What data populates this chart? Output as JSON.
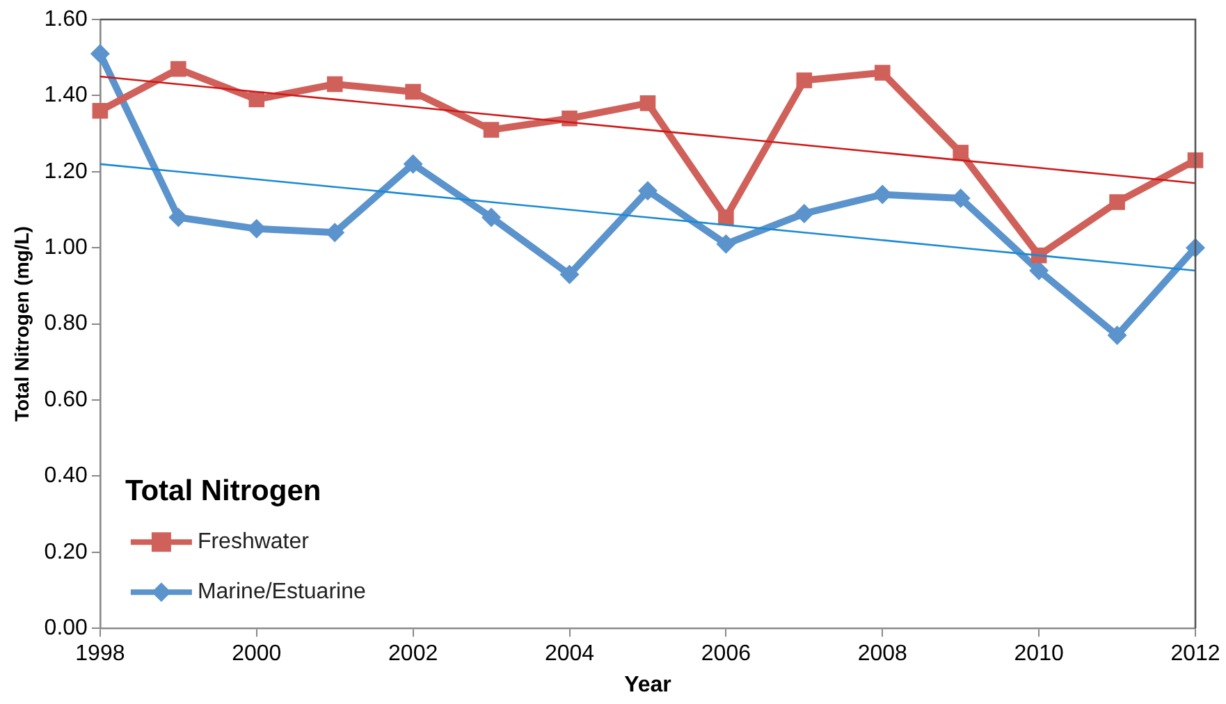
{
  "chart_data": {
    "type": "line",
    "xlabel": "Year",
    "ylabel": "Total Nitrogen (mg/L)",
    "legend_title": "Total Nitrogen",
    "legend": "bottom left",
    "grid": false,
    "x": [
      1998,
      1999,
      2000,
      2001,
      2002,
      2003,
      2004,
      2005,
      2006,
      2007,
      2008,
      2009,
      2010,
      2011,
      2012
    ],
    "xlim": [
      1998,
      2012
    ],
    "xticks": [
      1998,
      2000,
      2002,
      2004,
      2006,
      2008,
      2010,
      2012
    ],
    "ylim": [
      0,
      1.6
    ],
    "yticks": [
      {
        "value": 0,
        "label": "0.00"
      },
      {
        "value": 0.2,
        "label": "0.20"
      },
      {
        "value": 0.4,
        "label": "0.40"
      },
      {
        "value": 0.6,
        "label": "0.60"
      },
      {
        "value": 0.8,
        "label": "0.80"
      },
      {
        "value": 1,
        "label": "1.00"
      },
      {
        "value": 1.2,
        "label": "1.20"
      },
      {
        "value": 1.4,
        "label": "1.40"
      },
      {
        "value": 1.6,
        "label": "1.60"
      }
    ],
    "series": [
      {
        "name": "Freshwater",
        "color": "#d0605a",
        "marker": "square",
        "values": [
          1.36,
          1.47,
          1.39,
          1.43,
          1.41,
          1.31,
          1.34,
          1.38,
          1.08,
          1.44,
          1.46,
          1.25,
          0.98,
          1.12,
          1.23
        ]
      },
      {
        "name": "Marine/Estuarine",
        "color": "#5b93cc",
        "marker": "diamond",
        "values": [
          1.51,
          1.08,
          1.05,
          1.04,
          1.22,
          1.08,
          0.93,
          1.15,
          1.01,
          1.09,
          1.14,
          1.13,
          0.94,
          0.77,
          1.0
        ]
      },
      {
        "type": "line",
        "color": "#d01818",
        "marker": "none",
        "values": [
          1.45,
          1.43,
          1.41,
          1.39,
          1.37,
          1.35,
          1.33,
          1.31,
          1.29,
          1.27,
          1.25,
          1.23,
          1.21,
          1.19,
          1.17
        ]
      },
      {
        "type": "line",
        "color": "#1a8ad4",
        "marker": "none",
        "values": [
          1.22,
          1.2,
          1.18,
          1.16,
          1.14,
          1.12,
          1.1,
          1.08,
          1.06,
          1.04,
          1.02,
          1.0,
          0.98,
          0.96,
          0.94
        ]
      }
    ]
  }
}
